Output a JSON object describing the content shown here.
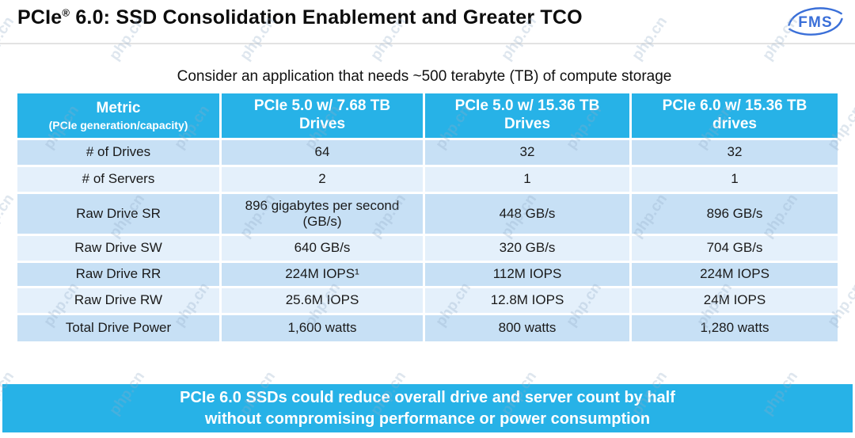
{
  "title": {
    "product": "PCIe",
    "registered": "®",
    "rest": " 6.0: SSD Consolidation Enablement and Greater TCO"
  },
  "logo": {
    "text": "FMS",
    "color": "#3a6fd8"
  },
  "subtitle": "Consider an application that needs ~500 terabyte (TB) of compute storage",
  "watermark": {
    "text": "php.cn"
  },
  "table": {
    "header": {
      "metric_title": "Metric",
      "metric_subtitle": "(PCIe generation/capacity)",
      "columns": [
        "PCIe 5.0 w/ 7.68 TB Drives",
        "PCIe 5.0 w/ 15.36 TB Drives",
        "PCIe 6.0 w/ 15.36 TB drives"
      ]
    },
    "rows": [
      {
        "metric": "# of Drives",
        "values": [
          "64",
          "32",
          "32"
        ]
      },
      {
        "metric": "# of Servers",
        "values": [
          "2",
          "1",
          "1"
        ]
      },
      {
        "metric": "Raw Drive SR",
        "values": [
          "896 gigabytes per second (GB/s)",
          "448 GB/s",
          "896 GB/s"
        ]
      },
      {
        "metric": "Raw Drive SW",
        "values": [
          "640 GB/s",
          "320 GB/s",
          "704 GB/s"
        ]
      },
      {
        "metric": "Raw Drive RR",
        "values": [
          "224M IOPS¹",
          "112M IOPS",
          "224M IOPS"
        ]
      },
      {
        "metric": "Raw Drive RW",
        "values": [
          "25.6M IOPS",
          "12.8M IOPS",
          "24M IOPS"
        ]
      },
      {
        "metric": "Total Drive Power",
        "values": [
          "1,600 watts",
          "800 watts",
          "1,280 watts"
        ]
      }
    ]
  },
  "banner": {
    "line1": "PCIe 6.0 SSDs could reduce overall drive and server count by half",
    "line2": "without compromising performance or power consumption"
  },
  "colors": {
    "accent_cyan": "#27b2e7",
    "row_dark": "#c7e0f5",
    "row_light": "#e4f0fb",
    "logo_blue": "#3a6fd8"
  }
}
